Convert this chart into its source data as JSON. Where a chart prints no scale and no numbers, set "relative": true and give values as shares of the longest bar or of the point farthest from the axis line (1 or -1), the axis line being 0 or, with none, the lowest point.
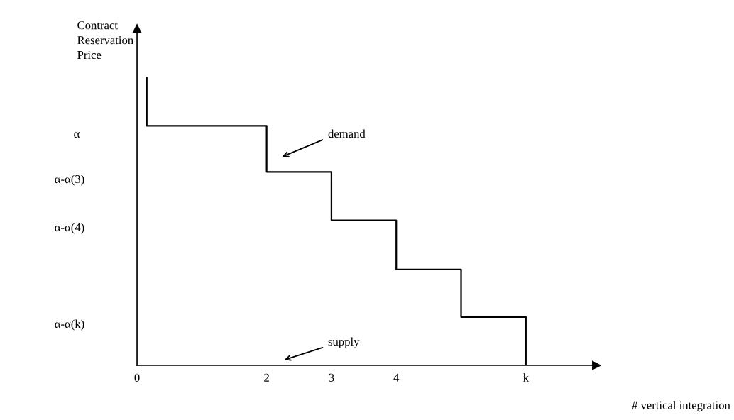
{
  "chart_data": {
    "type": "step",
    "relative": true,
    "ylabel": "Contract\nReservation\nPrice",
    "xlabel": "# vertical integration",
    "x": [
      0.15,
      0.15,
      2,
      3,
      4,
      5,
      6
    ],
    "series": [
      {
        "color": "#000000",
        "values": [
          1,
          0.832,
          0.672,
          0.504,
          0.333,
          0.168,
          0
        ]
      }
    ],
    "xlim": [
      0,
      7.09
    ],
    "xticks": [
      0,
      2,
      3,
      4,
      {
        "value": 6,
        "label": "k"
      }
    ],
    "annotations": [
      "α",
      "α-α(3)",
      "α-α(4)",
      "α-α(k)",
      "demand",
      "supply"
    ],
    "grid": false,
    "line_style": "solid",
    "marker": "none"
  }
}
